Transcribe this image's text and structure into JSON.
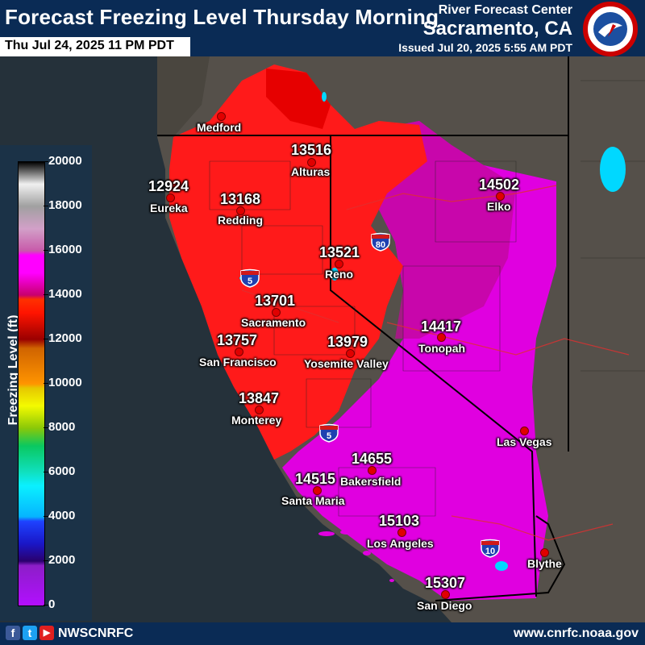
{
  "header": {
    "title": "Forecast Freezing Level Thursday Morning",
    "valid_time": "Thu Jul 24, 2025 11 PM PDT",
    "agency": "River Forecast Center",
    "office": "Sacramento, CA",
    "issued": "Issued Jul 20, 2025 5:55 AM PDT",
    "logo_text": "NATIONAL WEATHER SERVICE"
  },
  "legend": {
    "title": "Freezing Level (ft)",
    "ticks": [
      "20000",
      "18000",
      "16000",
      "14000",
      "12000",
      "10000",
      "8000",
      "6000",
      "4000",
      "2000",
      "0"
    ]
  },
  "cities": [
    {
      "name": "Medford",
      "value": ""
    },
    {
      "name": "Alturas",
      "value": "13516"
    },
    {
      "name": "Eureka",
      "value": "12924"
    },
    {
      "name": "Redding",
      "value": "13168"
    },
    {
      "name": "Elko",
      "value": "14502"
    },
    {
      "name": "Reno",
      "value": "13521"
    },
    {
      "name": "Sacramento",
      "value": "13701"
    },
    {
      "name": "Tonopah",
      "value": "14417"
    },
    {
      "name": "San Francisco",
      "value": "13757"
    },
    {
      "name": "Yosemite Valley",
      "value": "13979"
    },
    {
      "name": "Monterey",
      "value": "13847"
    },
    {
      "name": "Las Vegas",
      "value": ""
    },
    {
      "name": "Bakersfield",
      "value": "14655"
    },
    {
      "name": "Santa Maria",
      "value": "14515"
    },
    {
      "name": "Los Angeles",
      "value": "15103"
    },
    {
      "name": "Blythe",
      "value": ""
    },
    {
      "name": "San Diego",
      "value": "15307"
    }
  ],
  "highways": {
    "i5": "5",
    "i80": "80",
    "i10": "10"
  },
  "footer": {
    "handle": "NWSCNRFC",
    "website": "www.cnrfc.noaa.gov",
    "facebook": "f",
    "twitter": "t",
    "youtube": "▶"
  },
  "colors": {
    "header": "#0a2b55",
    "ocean": "#25313a",
    "land": "#55504a",
    "red_zone": "#ff1a1a",
    "magenta_zone": "#e000e0"
  }
}
